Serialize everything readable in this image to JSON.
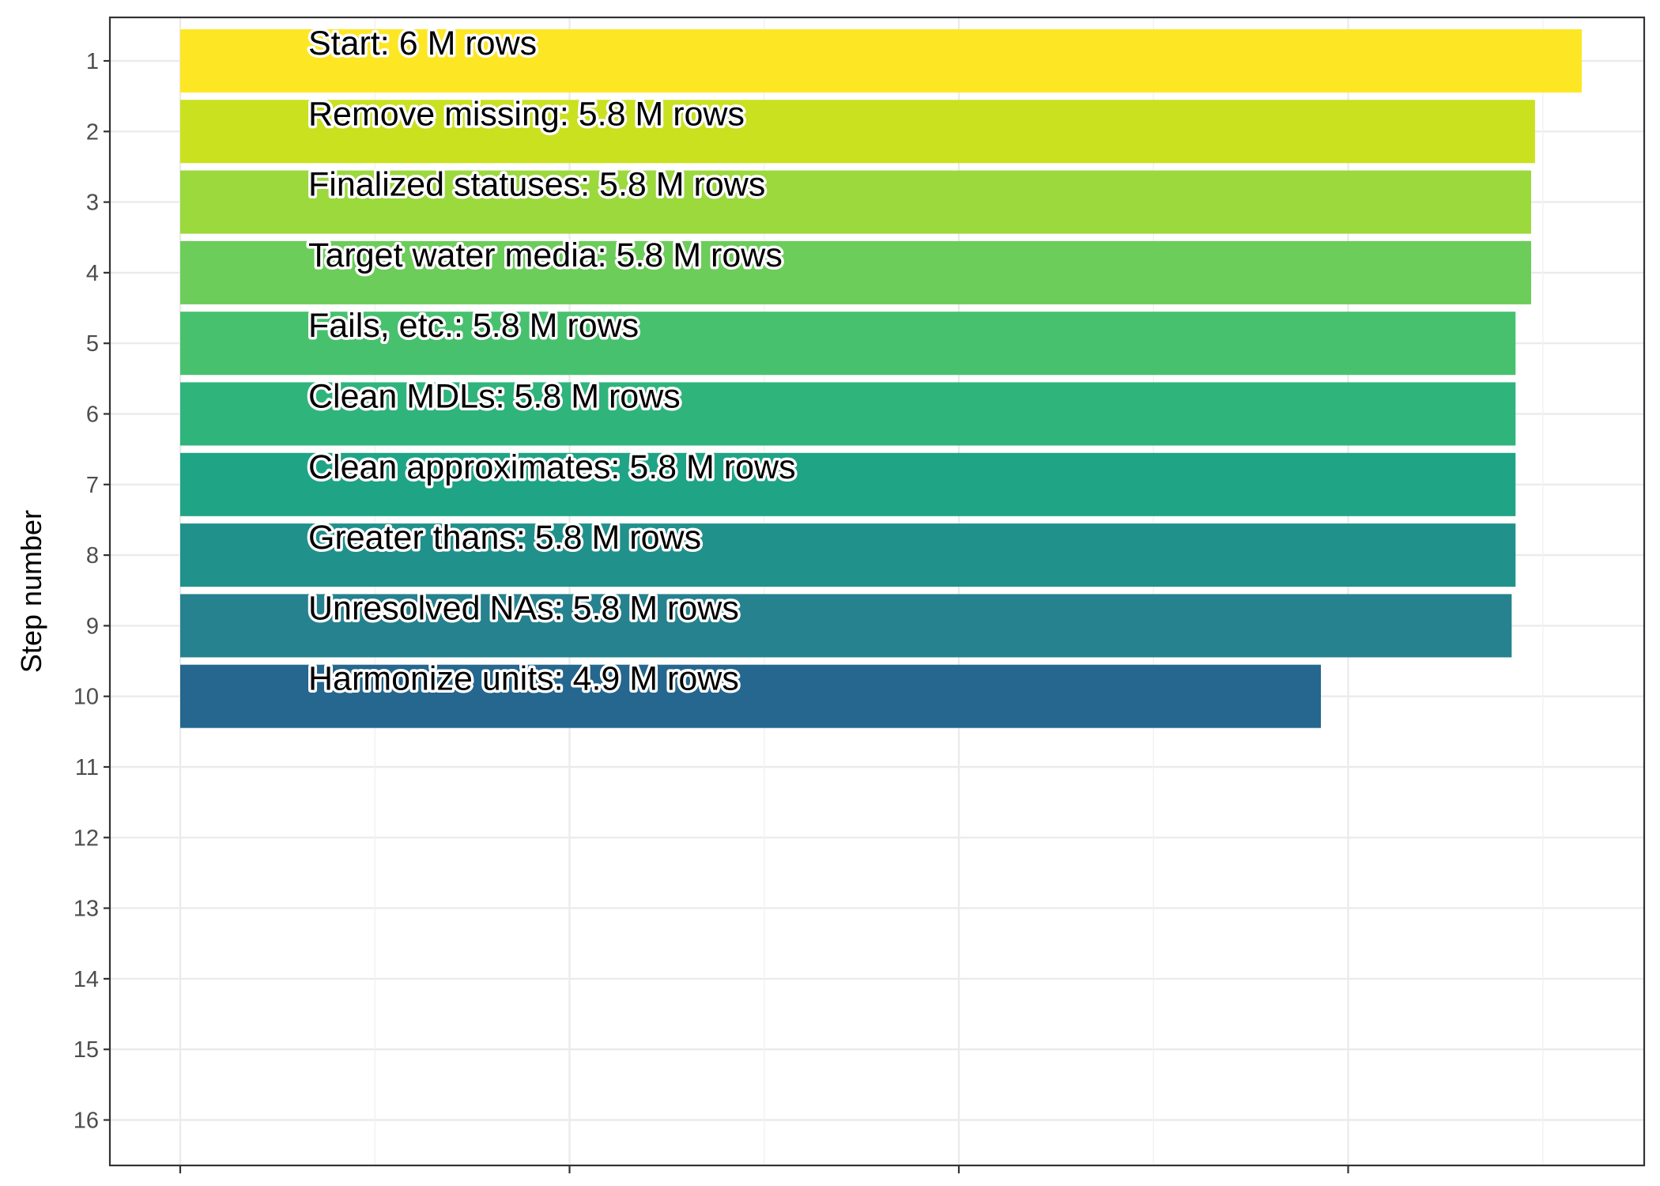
{
  "chart_data": {
    "type": "bar",
    "orientation": "horizontal",
    "title": "",
    "xlabel": "",
    "ylabel": "Step number",
    "y_ticks": [
      "1",
      "2",
      "3",
      "4",
      "5",
      "6",
      "7",
      "8",
      "9",
      "10",
      "11",
      "12",
      "13",
      "14",
      "15",
      "16"
    ],
    "x_tick_labels": [
      "",
      "",
      "",
      ""
    ],
    "xlim": [
      0,
      3.6
    ],
    "grid": true,
    "legend": "none",
    "colormap": "viridis",
    "series": [
      {
        "values": [
          3.6,
          3.48,
          3.47,
          3.47,
          3.43,
          3.43,
          3.43,
          3.43,
          3.42,
          2.93
        ],
        "labels": [
          "Start:  6 M rows",
          "Remove missing:  5.8 M rows",
          "Finalized statuses:  5.8 M rows",
          "Target water media:  5.8 M rows",
          "Fails, etc.:  5.8 M rows",
          "Clean MDLs:  5.8 M rows",
          "Clean approximates:  5.8 M rows",
          "Greater thans:  5.8 M rows",
          "Unresolved NAs:  5.8 M rows",
          "Harmonize units:  4.9 M rows"
        ],
        "colors": [
          "#fde725",
          "#cae11f",
          "#9bd93c",
          "#6ccd5a",
          "#47c16e",
          "#2fb47c",
          "#20a486",
          "#21918c",
          "#26828e",
          "#25678e"
        ]
      }
    ]
  }
}
